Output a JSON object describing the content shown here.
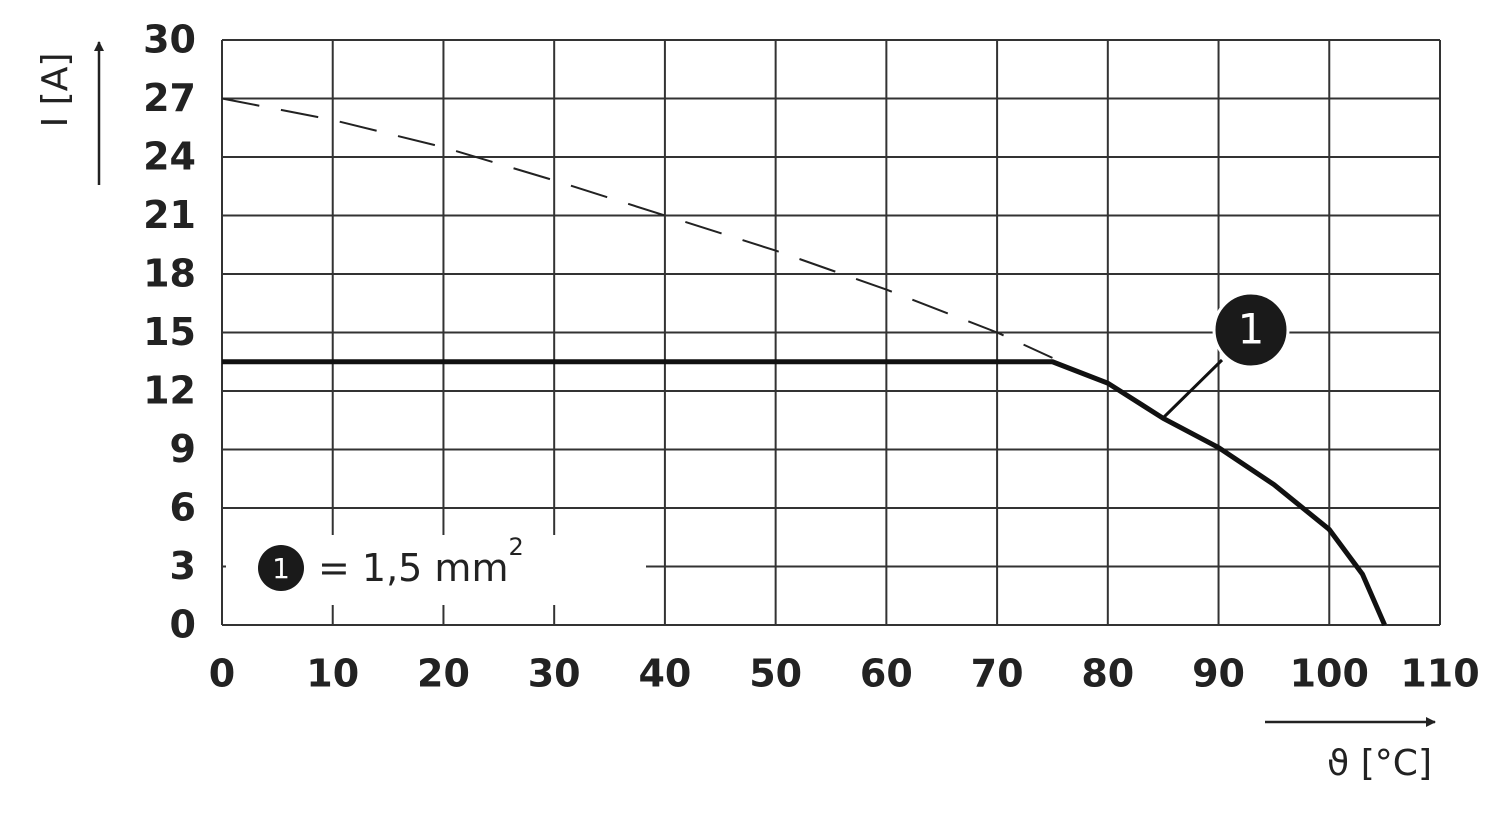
{
  "chart_data": {
    "type": "line",
    "y_label": "I [A]",
    "x_label": "ϑ [°C]",
    "xlim": [
      0,
      110
    ],
    "xticks": [
      0,
      10,
      20,
      30,
      40,
      50,
      60,
      70,
      80,
      90,
      100,
      110
    ],
    "ylim": [
      0,
      30
    ],
    "yticks": [
      0,
      3,
      6,
      9,
      12,
      15,
      18,
      21,
      24,
      27,
      30
    ],
    "grid": true,
    "series": [
      {
        "color": "#222222",
        "style": "dashed",
        "x": [
          0,
          10,
          20,
          30,
          40,
          50,
          60,
          70,
          75
        ],
        "values": [
          27,
          25.9,
          24.5,
          22.8,
          21,
          19.2,
          17.2,
          15,
          13.7
        ]
      },
      {
        "color": "#111111",
        "style": "solid",
        "x": [
          0,
          75,
          80,
          85,
          90,
          95,
          100,
          103,
          105
        ],
        "values": [
          13.5,
          13.5,
          12.4,
          10.6,
          9.1,
          7.2,
          4.9,
          2.6,
          0
        ]
      }
    ],
    "callout": "1",
    "legend": {
      "marker": "1",
      "text": "= 1,5 mm",
      "superscript": "2"
    }
  }
}
